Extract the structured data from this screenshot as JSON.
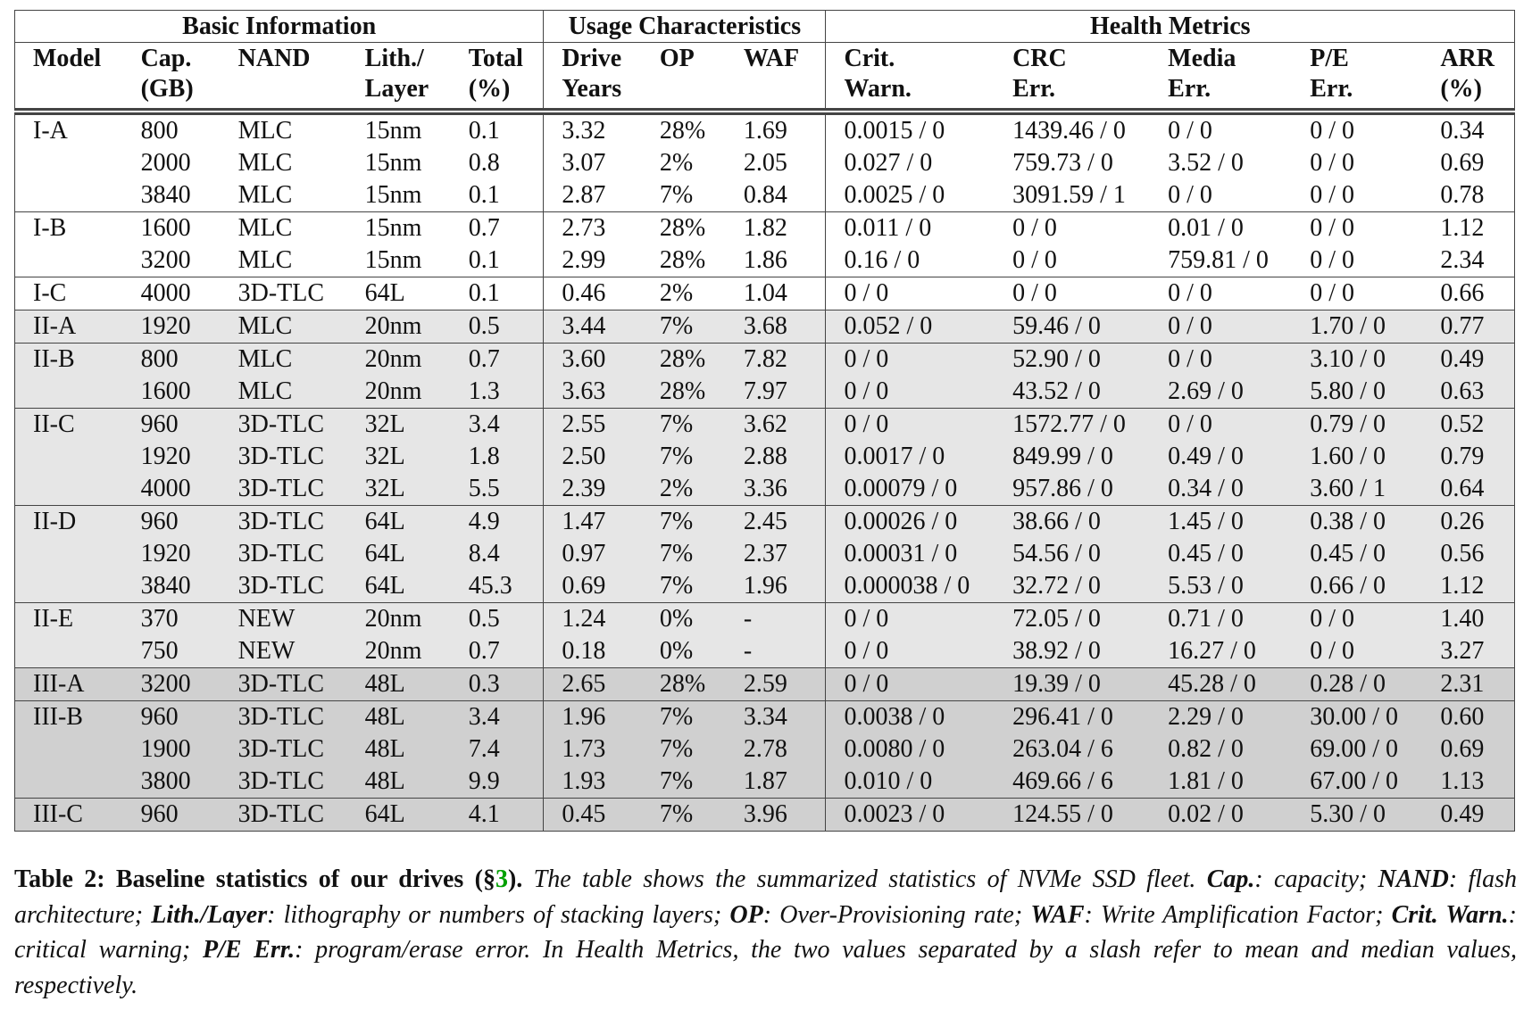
{
  "table": {
    "groups": [
      {
        "title": "Basic Information",
        "columns": [
          [
            "Model"
          ],
          [
            "Cap.",
            "(GB)"
          ],
          [
            "NAND"
          ],
          [
            "Lith./",
            "Layer"
          ],
          [
            "Total",
            "(%)"
          ]
        ]
      },
      {
        "title": "Usage Characteristics",
        "columns": [
          [
            "Drive",
            "Years"
          ],
          [
            "OP"
          ],
          [
            "WAF"
          ]
        ]
      },
      {
        "title": "Health Metrics",
        "columns": [
          [
            "Crit.",
            "Warn."
          ],
          [
            "CRC",
            "Err."
          ],
          [
            "Media",
            "Err."
          ],
          [
            "P/E",
            "Err."
          ],
          [
            "ARR",
            "(%)"
          ]
        ]
      }
    ],
    "models": [
      {
        "model": "I-A",
        "fill": "#ffffff",
        "rows": [
          [
            "800",
            "MLC",
            "15nm",
            "0.1",
            "3.32",
            "28%",
            "1.69",
            "0.0015 / 0",
            "1439.46 / 0",
            "0 / 0",
            "0 / 0",
            "0.34"
          ],
          [
            "2000",
            "MLC",
            "15nm",
            "0.8",
            "3.07",
            "2%",
            "2.05",
            "0.027 / 0",
            "759.73 / 0",
            "3.52 / 0",
            "0 / 0",
            "0.69"
          ],
          [
            "3840",
            "MLC",
            "15nm",
            "0.1",
            "2.87",
            "7%",
            "0.84",
            "0.0025 / 0",
            "3091.59 / 1",
            "0 / 0",
            "0 / 0",
            "0.78"
          ]
        ]
      },
      {
        "model": "I-B",
        "fill": "#ffffff",
        "rows": [
          [
            "1600",
            "MLC",
            "15nm",
            "0.7",
            "2.73",
            "28%",
            "1.82",
            "0.011 / 0",
            "0 / 0",
            "0.01 / 0",
            "0 / 0",
            "1.12"
          ],
          [
            "3200",
            "MLC",
            "15nm",
            "0.1",
            "2.99",
            "28%",
            "1.86",
            "0.16 / 0",
            "0 / 0",
            "759.81 / 0",
            "0 / 0",
            "2.34"
          ]
        ]
      },
      {
        "model": "I-C",
        "fill": "#ffffff",
        "rows": [
          [
            "4000",
            "3D-TLC",
            "64L",
            "0.1",
            "0.46",
            "2%",
            "1.04",
            "0 / 0",
            "0 / 0",
            "0 / 0",
            "0 / 0",
            "0.66"
          ]
        ]
      },
      {
        "model": "II-A",
        "fill": "#e6e6e6",
        "rows": [
          [
            "1920",
            "MLC",
            "20nm",
            "0.5",
            "3.44",
            "7%",
            "3.68",
            "0.052 / 0",
            "59.46 / 0",
            "0 / 0",
            "1.70 / 0",
            "0.77"
          ]
        ]
      },
      {
        "model": "II-B",
        "fill": "#e6e6e6",
        "rows": [
          [
            "800",
            "MLC",
            "20nm",
            "0.7",
            "3.60",
            "28%",
            "7.82",
            "0 / 0",
            "52.90 / 0",
            "0 / 0",
            "3.10 / 0",
            "0.49"
          ],
          [
            "1600",
            "MLC",
            "20nm",
            "1.3",
            "3.63",
            "28%",
            "7.97",
            "0 / 0",
            "43.52 / 0",
            "2.69 / 0",
            "5.80 / 0",
            "0.63"
          ]
        ]
      },
      {
        "model": "II-C",
        "fill": "#e6e6e6",
        "rows": [
          [
            "960",
            "3D-TLC",
            "32L",
            "3.4",
            "2.55",
            "7%",
            "3.62",
            "0 / 0",
            "1572.77 / 0",
            "0 / 0",
            "0.79 / 0",
            "0.52"
          ],
          [
            "1920",
            "3D-TLC",
            "32L",
            "1.8",
            "2.50",
            "7%",
            "2.88",
            "0.0017 / 0",
            "849.99 / 0",
            "0.49 / 0",
            "1.60 / 0",
            "0.79"
          ],
          [
            "4000",
            "3D-TLC",
            "32L",
            "5.5",
            "2.39",
            "2%",
            "3.36",
            "0.00079 / 0",
            "957.86 / 0",
            "0.34 / 0",
            "3.60 / 1",
            "0.64"
          ]
        ]
      },
      {
        "model": "II-D",
        "fill": "#e6e6e6",
        "rows": [
          [
            "960",
            "3D-TLC",
            "64L",
            "4.9",
            "1.47",
            "7%",
            "2.45",
            "0.00026 / 0",
            "38.66 / 0",
            "1.45 / 0",
            "0.38 / 0",
            "0.26"
          ],
          [
            "1920",
            "3D-TLC",
            "64L",
            "8.4",
            "0.97",
            "7%",
            "2.37",
            "0.00031 / 0",
            "54.56 / 0",
            "0.45 / 0",
            "0.45 / 0",
            "0.56"
          ],
          [
            "3840",
            "3D-TLC",
            "64L",
            "45.3",
            "0.69",
            "7%",
            "1.96",
            "0.000038 / 0",
            "32.72 / 0",
            "5.53 / 0",
            "0.66 / 0",
            "1.12"
          ]
        ]
      },
      {
        "model": "II-E",
        "fill": "#e6e6e6",
        "rows": [
          [
            "370",
            "NEW",
            "20nm",
            "0.5",
            "1.24",
            "0%",
            "-",
            "0 / 0",
            "72.05 / 0",
            "0.71 / 0",
            "0 / 0",
            "1.40"
          ],
          [
            "750",
            "NEW",
            "20nm",
            "0.7",
            "0.18",
            "0%",
            "-",
            "0 / 0",
            "38.92 / 0",
            "16.27 / 0",
            "0 / 0",
            "3.27"
          ]
        ]
      },
      {
        "model": "III-A",
        "fill": "#d0d0d0",
        "rows": [
          [
            "3200",
            "3D-TLC",
            "48L",
            "0.3",
            "2.65",
            "28%",
            "2.59",
            "0 / 0",
            "19.39 / 0",
            "45.28 / 0",
            "0.28 / 0",
            "2.31"
          ]
        ]
      },
      {
        "model": "III-B",
        "fill": "#d0d0d0",
        "rows": [
          [
            "960",
            "3D-TLC",
            "48L",
            "3.4",
            "1.96",
            "7%",
            "3.34",
            "0.0038 / 0",
            "296.41 / 0",
            "2.29 / 0",
            "30.00 / 0",
            "0.60"
          ],
          [
            "1900",
            "3D-TLC",
            "48L",
            "7.4",
            "1.73",
            "7%",
            "2.78",
            "0.0080 / 0",
            "263.04 / 6",
            "0.82 / 0",
            "69.00 / 0",
            "0.69"
          ],
          [
            "3800",
            "3D-TLC",
            "48L",
            "9.9",
            "1.93",
            "7%",
            "1.87",
            "0.010 / 0",
            "469.66 / 6",
            "1.81 / 0",
            "67.00 / 0",
            "1.13"
          ]
        ]
      },
      {
        "model": "III-C",
        "fill": "#d0d0d0",
        "rows": [
          [
            "960",
            "3D-TLC",
            "64L",
            "4.1",
            "0.45",
            "7%",
            "3.96",
            "0.0023 / 0",
            "124.55 / 0",
            "0.02 / 0",
            "5.30 / 0",
            "0.49"
          ]
        ]
      }
    ]
  },
  "caption": [
    {
      "text": "Table 2: Baseline statistics of our drives (§",
      "style": "bold"
    },
    {
      "text": "3",
      "style": "bold",
      "color": "#00a000"
    },
    {
      "text": ").",
      "style": "bold"
    },
    {
      "text": " The table shows the summarized statistics of NVMe SSD fleet. ",
      "style": "italic"
    },
    {
      "text": "Cap.",
      "style": "bold-italic"
    },
    {
      "text": ": capacity; ",
      "style": "italic"
    },
    {
      "text": "NAND",
      "style": "bold-italic"
    },
    {
      "text": ": flash architecture; ",
      "style": "italic"
    },
    {
      "text": "Lith./Layer",
      "style": "bold-italic"
    },
    {
      "text": ": lithography or numbers of stacking layers; ",
      "style": "italic"
    },
    {
      "text": "OP",
      "style": "bold-italic"
    },
    {
      "text": ": Over-Provisioning rate; ",
      "style": "italic"
    },
    {
      "text": "WAF",
      "style": "bold-italic"
    },
    {
      "text": ": Write Amplification Factor; ",
      "style": "italic"
    },
    {
      "text": "Crit. Warn.",
      "style": "bold-italic"
    },
    {
      "text": ": critical warning; ",
      "style": "italic"
    },
    {
      "text": "P/E Err.",
      "style": "bold-italic"
    },
    {
      "text": ": program/erase error. In Health Metrics, the two values separated by a slash refer to mean and median values, respectively.",
      "style": "italic"
    }
  ]
}
